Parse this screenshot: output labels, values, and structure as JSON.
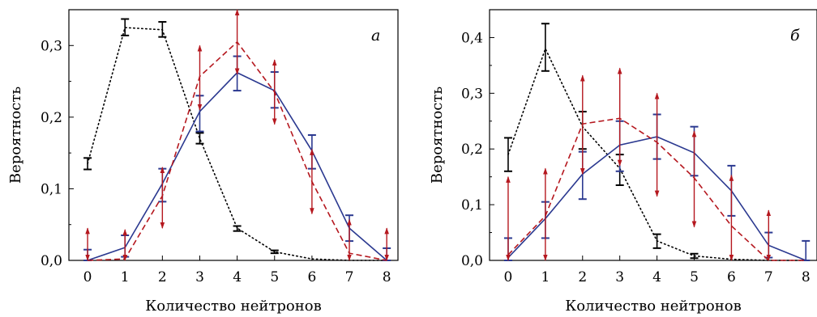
{
  "colors": {
    "black_series": "#000000",
    "blue_series": "#2b3990",
    "red_series": "#b5181f"
  },
  "chart_data": [
    {
      "type": "line",
      "panel_label": "а",
      "xlabel": "Количество нейтронов",
      "ylabel": "Вероятность",
      "xlim": [
        -0.5,
        8.3
      ],
      "ylim": [
        0,
        0.35
      ],
      "x_ticks": [
        "0",
        "1",
        "2",
        "3",
        "4",
        "5",
        "6",
        "7",
        "8"
      ],
      "y_ticks": [
        {
          "value": 0.0,
          "label": "0,0"
        },
        {
          "value": 0.1,
          "label": "0,1"
        },
        {
          "value": 0.2,
          "label": "0,2"
        },
        {
          "value": 0.3,
          "label": "0,3"
        }
      ],
      "grid": false,
      "series": [
        {
          "style": "dotted",
          "color": "#000000",
          "x": [
            0,
            1,
            2,
            3,
            4,
            5,
            6,
            7,
            8
          ],
          "y": [
            0.135,
            0.325,
            0.322,
            0.17,
            0.045,
            0.012,
            0.002,
            0.0,
            0.0
          ],
          "errors": [
            {
              "x": 0,
              "low": 0.127,
              "high": 0.143
            },
            {
              "x": 1,
              "low": 0.314,
              "high": 0.337
            },
            {
              "x": 2,
              "low": 0.312,
              "high": 0.333
            },
            {
              "x": 3,
              "low": 0.163,
              "high": 0.178
            },
            {
              "x": 4,
              "low": 0.041,
              "high": 0.048
            },
            {
              "x": 5,
              "low": 0.01,
              "high": 0.014
            }
          ]
        },
        {
          "style": "solid",
          "color": "#2b3990",
          "x": [
            0,
            1,
            2,
            3,
            4,
            5,
            6,
            7,
            8
          ],
          "y": [
            0.0,
            0.018,
            0.107,
            0.208,
            0.262,
            0.237,
            0.153,
            0.045,
            0.0
          ],
          "errors": [
            {
              "x": 0,
              "low": 0.0,
              "high": 0.015
            },
            {
              "x": 1,
              "low": 0.005,
              "high": 0.035
            },
            {
              "x": 2,
              "low": 0.082,
              "high": 0.128
            },
            {
              "x": 3,
              "low": 0.18,
              "high": 0.23
            },
            {
              "x": 4,
              "low": 0.237,
              "high": 0.285
            },
            {
              "x": 5,
              "low": 0.213,
              "high": 0.263
            },
            {
              "x": 6,
              "low": 0.128,
              "high": 0.175
            },
            {
              "x": 7,
              "low": 0.027,
              "high": 0.063
            },
            {
              "x": 8,
              "low": 0.0,
              "high": 0.017
            }
          ]
        },
        {
          "style": "dashed",
          "color": "#b5181f",
          "x": [
            0,
            1,
            2,
            3,
            4,
            5,
            6,
            7,
            8
          ],
          "y": [
            0.0,
            0.002,
            0.09,
            0.257,
            0.305,
            0.235,
            0.11,
            0.01,
            0.0
          ],
          "errors": [
            {
              "x": 0,
              "low": 0.0,
              "high": 0.045
            },
            {
              "x": 1,
              "low": 0.0,
              "high": 0.043
            },
            {
              "x": 2,
              "low": 0.045,
              "high": 0.13
            },
            {
              "x": 3,
              "low": 0.21,
              "high": 0.3
            },
            {
              "x": 4,
              "low": 0.26,
              "high": 0.35
            },
            {
              "x": 5,
              "low": 0.19,
              "high": 0.28
            },
            {
              "x": 6,
              "low": 0.065,
              "high": 0.155
            },
            {
              "x": 7,
              "low": 0.0,
              "high": 0.057
            },
            {
              "x": 8,
              "low": 0.0,
              "high": 0.045
            }
          ]
        }
      ]
    },
    {
      "type": "line",
      "panel_label": "б",
      "xlabel": "Количество нейтронов",
      "ylabel": "Вероятность",
      "xlim": [
        -0.5,
        8.3
      ],
      "ylim": [
        0,
        0.45
      ],
      "x_ticks": [
        "0",
        "1",
        "2",
        "3",
        "4",
        "5",
        "6",
        "7",
        "8"
      ],
      "y_ticks": [
        {
          "value": 0.0,
          "label": "0,0"
        },
        {
          "value": 0.1,
          "label": "0,1"
        },
        {
          "value": 0.2,
          "label": "0,2"
        },
        {
          "value": 0.3,
          "label": "0,3"
        },
        {
          "value": 0.4,
          "label": "0,4"
        }
      ],
      "grid": false,
      "series": [
        {
          "style": "dotted",
          "color": "#000000",
          "x": [
            0,
            1,
            2,
            3,
            4,
            5,
            6,
            7,
            8
          ],
          "y": [
            0.19,
            0.38,
            0.24,
            0.165,
            0.035,
            0.008,
            0.002,
            0.0,
            0.0
          ],
          "errors": [
            {
              "x": 0,
              "low": 0.16,
              "high": 0.22
            },
            {
              "x": 1,
              "low": 0.34,
              "high": 0.425
            },
            {
              "x": 2,
              "low": 0.2,
              "high": 0.267
            },
            {
              "x": 3,
              "low": 0.135,
              "high": 0.19
            },
            {
              "x": 4,
              "low": 0.022,
              "high": 0.047
            },
            {
              "x": 5,
              "low": 0.004,
              "high": 0.012
            }
          ]
        },
        {
          "style": "solid",
          "color": "#2b3990",
          "x": [
            0,
            1,
            2,
            3,
            4,
            5,
            6,
            7,
            8
          ],
          "y": [
            0.005,
            0.075,
            0.155,
            0.207,
            0.222,
            0.193,
            0.125,
            0.027,
            0.0
          ],
          "errors": [
            {
              "x": 0,
              "low": 0.0,
              "high": 0.04
            },
            {
              "x": 1,
              "low": 0.04,
              "high": 0.105
            },
            {
              "x": 2,
              "low": 0.11,
              "high": 0.195
            },
            {
              "x": 3,
              "low": 0.16,
              "high": 0.25
            },
            {
              "x": 4,
              "low": 0.182,
              "high": 0.262
            },
            {
              "x": 5,
              "low": 0.152,
              "high": 0.24
            },
            {
              "x": 6,
              "low": 0.08,
              "high": 0.17
            },
            {
              "x": 7,
              "low": 0.005,
              "high": 0.05
            },
            {
              "x": 8,
              "low": 0.0,
              "high": 0.035
            }
          ]
        },
        {
          "style": "dashed",
          "color": "#b5181f",
          "x": [
            0,
            1,
            2,
            3,
            4,
            5,
            6,
            7,
            8
          ],
          "y": [
            0.01,
            0.08,
            0.245,
            0.255,
            0.212,
            0.148,
            0.062,
            0.0,
            0.0
          ],
          "errors": [
            {
              "x": 0,
              "low": 0.0,
              "high": 0.15
            },
            {
              "x": 1,
              "low": 0.0,
              "high": 0.165
            },
            {
              "x": 2,
              "low": 0.155,
              "high": 0.332
            },
            {
              "x": 3,
              "low": 0.17,
              "high": 0.345
            },
            {
              "x": 4,
              "low": 0.115,
              "high": 0.3
            },
            {
              "x": 5,
              "low": 0.06,
              "high": 0.232
            },
            {
              "x": 6,
              "low": 0.0,
              "high": 0.153
            },
            {
              "x": 7,
              "low": 0.0,
              "high": 0.09
            }
          ]
        }
      ]
    }
  ]
}
